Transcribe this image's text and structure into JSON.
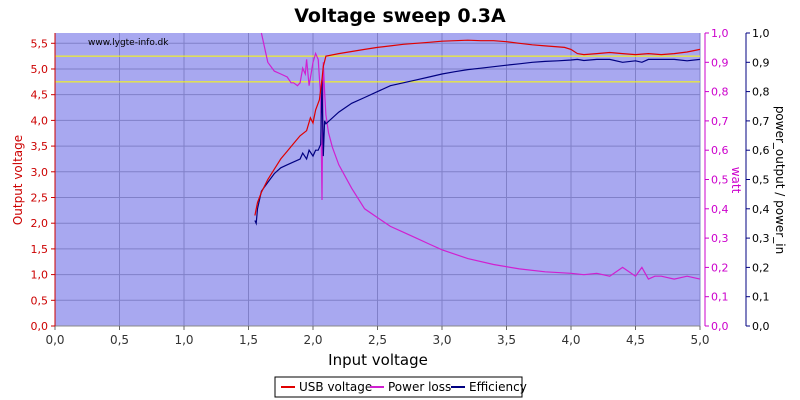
{
  "chart_data": {
    "type": "line",
    "title": "Voltage sweep 0.3A",
    "watermark": "www.lygte-info.dk",
    "xlabel": "Input voltage",
    "ylabel_left": "Output voltage",
    "ylabel_right1": "watt",
    "ylabel_right2": "power_output / power_in",
    "xlim": [
      0,
      5
    ],
    "ylim_left": [
      0,
      5.7
    ],
    "ylim_right": [
      0,
      1
    ],
    "xticks": [
      "0,0",
      "0,5",
      "1,0",
      "1,5",
      "2,0",
      "2,5",
      "3,0",
      "3,5",
      "4,0",
      "4,5",
      "5,0"
    ],
    "yticks_left": [
      "0,0",
      "0,5",
      "1,0",
      "1,5",
      "2,0",
      "2,5",
      "3,0",
      "3,5",
      "4,0",
      "4,5",
      "5,0",
      "5,5"
    ],
    "yticks_right1": [
      "0,0",
      "0,1",
      "0,2",
      "0,3",
      "0,4",
      "0,5",
      "0,6",
      "0,7",
      "0,8",
      "0,9",
      "1,0"
    ],
    "yticks_right2": [
      "0,0",
      "0,1",
      "0,2",
      "0,3",
      "0,4",
      "0,5",
      "0,6",
      "0,7",
      "0,8",
      "0,9",
      "1,0"
    ],
    "reference_lines_left": [
      4.75,
      5.25
    ],
    "grid": true,
    "legend_position": "bottom",
    "colors": {
      "plot_bg": "#a8a8f0",
      "usb_voltage": "#e00000",
      "power_loss": "#d020d0",
      "efficiency": "#000080",
      "reference": "#ffff00",
      "left_axis": "#cc0000",
      "right_axis": "#cc00cc",
      "title": "#000000"
    },
    "series": [
      {
        "name": "USB voltage",
        "axis": "left",
        "x": [
          1.55,
          1.57,
          1.6,
          1.65,
          1.7,
          1.75,
          1.8,
          1.85,
          1.9,
          1.95,
          1.98,
          2.0,
          2.02,
          2.05,
          2.07,
          2.08,
          2.09,
          2.1,
          2.2,
          2.3,
          2.4,
          2.5,
          2.6,
          2.7,
          2.8,
          2.9,
          3.0,
          3.1,
          3.2,
          3.3,
          3.4,
          3.5,
          3.6,
          3.7,
          3.8,
          3.9,
          3.95,
          4.0,
          4.05,
          4.1,
          4.2,
          4.3,
          4.4,
          4.5,
          4.6,
          4.7,
          4.8,
          4.9,
          5.0
        ],
        "y": [
          2.15,
          2.4,
          2.6,
          2.85,
          3.05,
          3.25,
          3.4,
          3.55,
          3.7,
          3.8,
          4.05,
          3.95,
          4.2,
          4.4,
          4.8,
          5.05,
          5.15,
          5.25,
          5.3,
          5.34,
          5.38,
          5.42,
          5.45,
          5.48,
          5.5,
          5.52,
          5.54,
          5.55,
          5.56,
          5.55,
          5.55,
          5.53,
          5.5,
          5.47,
          5.45,
          5.43,
          5.42,
          5.38,
          5.3,
          5.28,
          5.3,
          5.32,
          5.3,
          5.28,
          5.3,
          5.28,
          5.3,
          5.33,
          5.38
        ]
      },
      {
        "name": "Power loss",
        "axis": "right",
        "x": [
          1.6,
          1.65,
          1.7,
          1.75,
          1.8,
          1.83,
          1.85,
          1.88,
          1.9,
          1.92,
          1.94,
          1.95,
          1.97,
          2.0,
          2.02,
          2.04,
          2.06,
          2.07,
          2.08,
          2.09,
          2.1,
          2.12,
          2.15,
          2.2,
          2.3,
          2.4,
          2.5,
          2.6,
          2.7,
          2.8,
          2.9,
          3.0,
          3.2,
          3.4,
          3.6,
          3.8,
          4.0,
          4.1,
          4.2,
          4.3,
          4.4,
          4.5,
          4.55,
          4.6,
          4.65,
          4.7,
          4.8,
          4.9,
          5.0
        ],
        "y": [
          1.0,
          0.9,
          0.87,
          0.86,
          0.85,
          0.83,
          0.83,
          0.82,
          0.83,
          0.88,
          0.86,
          0.91,
          0.82,
          0.9,
          0.93,
          0.91,
          0.78,
          0.43,
          0.9,
          0.8,
          0.72,
          0.66,
          0.61,
          0.55,
          0.47,
          0.4,
          0.37,
          0.34,
          0.32,
          0.3,
          0.28,
          0.26,
          0.23,
          0.21,
          0.195,
          0.185,
          0.18,
          0.175,
          0.18,
          0.17,
          0.2,
          0.17,
          0.2,
          0.16,
          0.17,
          0.17,
          0.16,
          0.17,
          0.16
        ]
      },
      {
        "name": "Efficiency",
        "axis": "right",
        "x": [
          1.55,
          1.56,
          1.57,
          1.6,
          1.65,
          1.7,
          1.75,
          1.8,
          1.85,
          1.9,
          1.92,
          1.95,
          1.97,
          2.0,
          2.02,
          2.04,
          2.06,
          2.07,
          2.08,
          2.09,
          2.1,
          2.2,
          2.3,
          2.4,
          2.5,
          2.6,
          2.7,
          2.8,
          2.9,
          3.0,
          3.1,
          3.2,
          3.3,
          3.4,
          3.5,
          3.6,
          3.7,
          3.8,
          3.9,
          4.0,
          4.05,
          4.1,
          4.2,
          4.3,
          4.4,
          4.5,
          4.55,
          4.6,
          4.7,
          4.8,
          4.9,
          5.0
        ],
        "y": [
          0.36,
          0.35,
          0.4,
          0.46,
          0.49,
          0.52,
          0.54,
          0.55,
          0.56,
          0.57,
          0.59,
          0.57,
          0.6,
          0.58,
          0.6,
          0.6,
          0.62,
          0.84,
          0.58,
          0.7,
          0.69,
          0.73,
          0.76,
          0.78,
          0.8,
          0.82,
          0.83,
          0.84,
          0.85,
          0.86,
          0.868,
          0.875,
          0.88,
          0.885,
          0.89,
          0.895,
          0.9,
          0.903,
          0.905,
          0.908,
          0.91,
          0.906,
          0.91,
          0.91,
          0.9,
          0.905,
          0.9,
          0.91,
          0.91,
          0.91,
          0.905,
          0.91
        ]
      }
    ]
  }
}
